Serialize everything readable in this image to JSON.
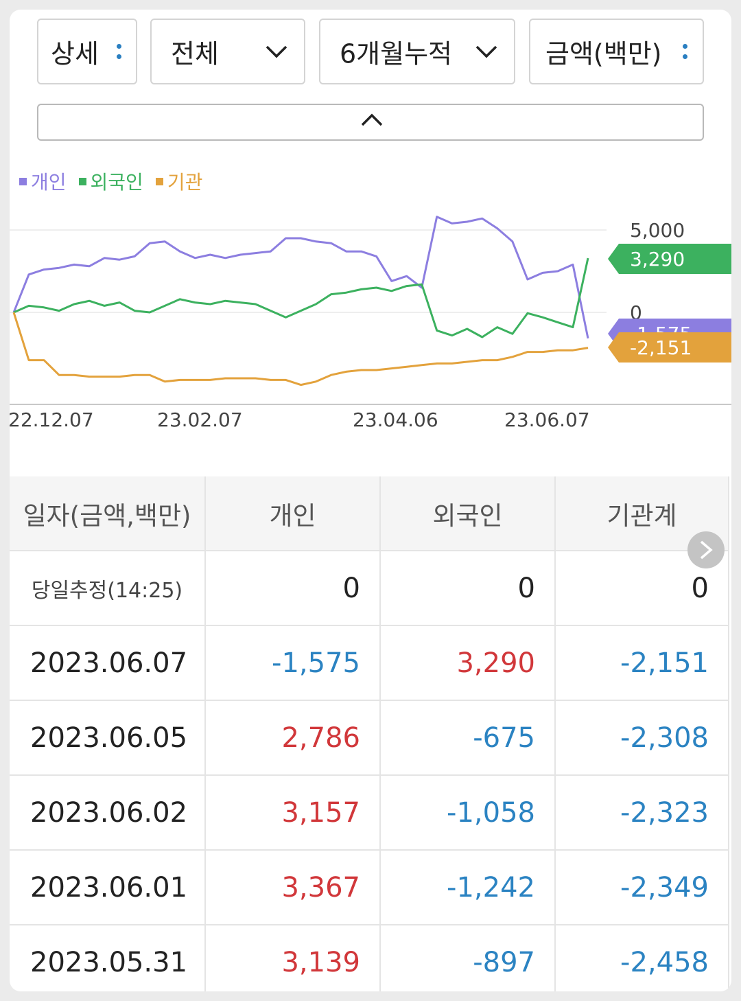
{
  "toolbar": {
    "detail_label": "상세",
    "scope_label": "전체",
    "period_label": "6개월누적",
    "unit_label": "금액(백만)"
  },
  "legend": [
    {
      "label": "개인",
      "color": "#8c7ee0"
    },
    {
      "label": "외국인",
      "color": "#3cb15f"
    },
    {
      "label": "기관",
      "color": "#e3a23c"
    }
  ],
  "chart_data": {
    "type": "line",
    "x_tick_labels": [
      "22.12.07",
      "23.02.07",
      "23.04.06",
      "23.06.07"
    ],
    "y_tick_labels": [
      "5,000",
      "0"
    ],
    "ylim": [
      -5500,
      6500
    ],
    "series": [
      {
        "name": "개인",
        "color": "#8c7ee0",
        "values": [
          0,
          2300,
          2600,
          2700,
          2900,
          2800,
          3300,
          3200,
          3400,
          4200,
          4300,
          3700,
          3300,
          3500,
          3300,
          3500,
          3600,
          3700,
          4500,
          4500,
          4300,
          4200,
          3700,
          3700,
          3400,
          1900,
          2200,
          1500,
          5800,
          5400,
          5500,
          5700,
          5100,
          4300,
          2000,
          2400,
          2500,
          2900,
          -1575
        ]
      },
      {
        "name": "외국인",
        "color": "#3cb15f",
        "values": [
          0,
          400,
          300,
          100,
          500,
          700,
          400,
          600,
          100,
          0,
          400,
          800,
          600,
          500,
          700,
          600,
          500,
          100,
          -300,
          100,
          500,
          1100,
          1200,
          1400,
          1500,
          1300,
          1600,
          1700,
          -1100,
          -1400,
          -1000,
          -1500,
          -900,
          -1300,
          -50,
          -300,
          -600,
          -900,
          3290
        ]
      },
      {
        "name": "기관",
        "color": "#e3a23c",
        "values": [
          0,
          -2900,
          -2900,
          -3800,
          -3800,
          -3900,
          -3900,
          -3900,
          -3800,
          -3800,
          -4200,
          -4100,
          -4100,
          -4100,
          -4000,
          -4000,
          -4000,
          -4100,
          -4100,
          -4400,
          -4200,
          -3800,
          -3600,
          -3500,
          -3500,
          -3400,
          -3300,
          -3200,
          -3100,
          -3100,
          -3000,
          -2900,
          -2900,
          -2700,
          -2400,
          -2400,
          -2300,
          -2300,
          -2151
        ]
      }
    ],
    "end_labels": [
      {
        "series": "외국인",
        "value": "3,290",
        "color": "#3cb15f"
      },
      {
        "series": "개인",
        "value": "-1,575",
        "color": "#8c7ee0"
      },
      {
        "series": "기관",
        "value": "-2,151",
        "color": "#e3a23c"
      }
    ]
  },
  "table": {
    "headers": [
      "일자(금액,백만)",
      "개인",
      "외국인",
      "기관계"
    ],
    "rows": [
      {
        "date": "당일추정(14:25)",
        "indiv": "0",
        "foreign": "0",
        "inst": "0",
        "estimate": true
      },
      {
        "date": "2023.06.07",
        "indiv": "-1,575",
        "foreign": "3,290",
        "inst": "-2,151"
      },
      {
        "date": "2023.06.05",
        "indiv": "2,786",
        "foreign": "-675",
        "inst": "-2,308"
      },
      {
        "date": "2023.06.02",
        "indiv": "3,157",
        "foreign": "-1,058",
        "inst": "-2,323"
      },
      {
        "date": "2023.06.01",
        "indiv": "3,367",
        "foreign": "-1,242",
        "inst": "-2,349"
      },
      {
        "date": "2023.05.31",
        "indiv": "3,139",
        "foreign": "-897",
        "inst": "-2,458"
      }
    ]
  },
  "icons": {
    "detail_menu": "vertical-dots-icon",
    "scope_dropdown": "chevron-down-icon",
    "period_dropdown": "chevron-down-icon",
    "unit_menu": "vertical-dots-icon",
    "collapse": "chevron-up-icon",
    "next_columns": "chevron-right-icon"
  }
}
